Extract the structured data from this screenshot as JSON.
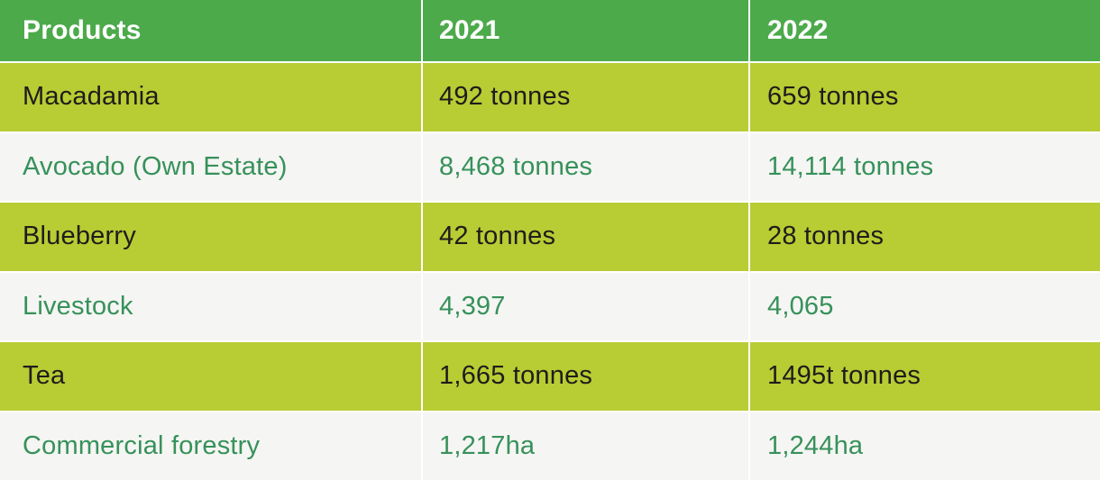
{
  "chart_data": {
    "type": "table",
    "columns": [
      "Products",
      "2021",
      "2022"
    ],
    "rows": [
      [
        "Macadamia",
        "492 tonnes",
        "659 tonnes"
      ],
      [
        "Avocado (Own Estate)",
        "8,468 tonnes",
        "14,114 tonnes"
      ],
      [
        "Blueberry",
        "42 tonnes",
        "28 tonnes"
      ],
      [
        "Livestock",
        "4,397",
        "4,065"
      ],
      [
        "Tea",
        "1,665 tonnes",
        "1495t tonnes"
      ],
      [
        "Commercial forestry",
        "1,217ha",
        "1,244ha"
      ]
    ],
    "layout_hints": {
      "header_row": true,
      "row_striping": [
        "lime",
        "off-white"
      ],
      "divider": "2px white gridlines"
    }
  },
  "colors": {
    "header_bg": "#4caa4b",
    "lime_row_bg": "#b8cc34",
    "light_row_bg": "#f5f5f3",
    "header_text": "#ffffff",
    "dark_text": "#1d1d1b",
    "green_text": "#36915a",
    "divider": "#ffffff"
  }
}
